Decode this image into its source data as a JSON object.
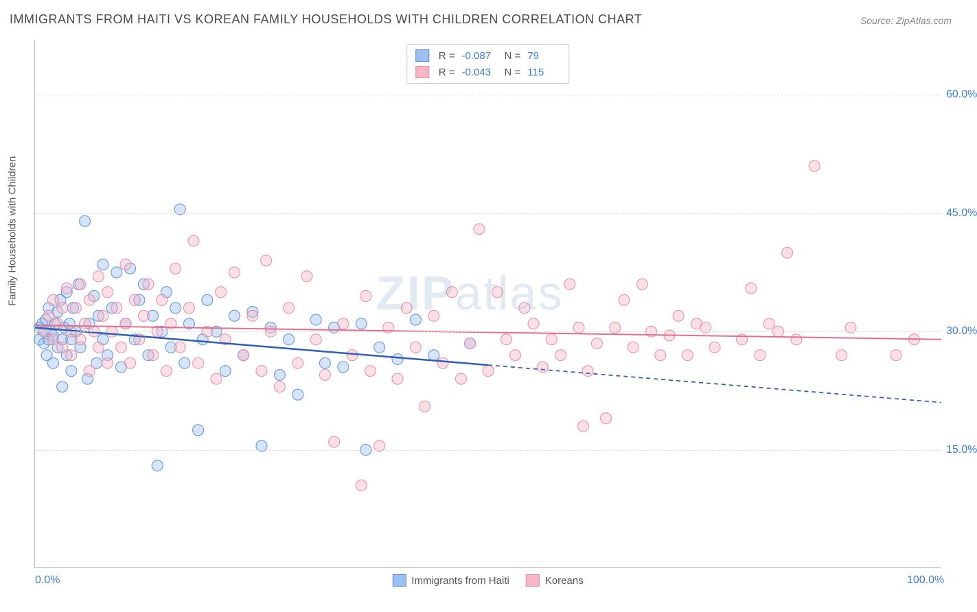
{
  "title": "IMMIGRANTS FROM HAITI VS KOREAN FAMILY HOUSEHOLDS WITH CHILDREN CORRELATION CHART",
  "source": "Source: ZipAtlas.com",
  "y_axis_title": "Family Households with Children",
  "watermark": "ZIPatlas",
  "chart": {
    "type": "scatter",
    "xlim": [
      0,
      100
    ],
    "ylim": [
      0,
      67
    ],
    "x_ticks": [
      {
        "v": 0,
        "label": "0.0%"
      },
      {
        "v": 100,
        "label": "100.0%"
      }
    ],
    "y_ticks": [
      {
        "v": 15,
        "label": "15.0%"
      },
      {
        "v": 30,
        "label": "30.0%"
      },
      {
        "v": 45,
        "label": "45.0%"
      },
      {
        "v": 60,
        "label": "60.0%"
      }
    ],
    "grid_color": "#dddddd",
    "background_color": "#ffffff",
    "axis_color": "#bbbbbb",
    "tick_label_color": "#3b7dd8",
    "marker_radius": 8,
    "marker_opacity": 0.42,
    "marker_stroke_opacity": 0.85,
    "series": [
      {
        "name": "Immigrants from Haiti",
        "fill": "#9dbff2",
        "stroke": "#5a8fd6",
        "R": "-0.087",
        "N": "79",
        "trend": {
          "y_at_x0": 30.5,
          "y_at_x100": 21.0,
          "solid_until_x": 50,
          "color": "#2e5fb3",
          "width": 2.5
        },
        "points": [
          [
            0.5,
            29
          ],
          [
            0.5,
            30.5
          ],
          [
            0.8,
            31
          ],
          [
            1,
            28.5
          ],
          [
            1,
            30
          ],
          [
            1.2,
            31.5
          ],
          [
            1.3,
            27
          ],
          [
            1.5,
            29
          ],
          [
            1.5,
            33
          ],
          [
            1.8,
            30
          ],
          [
            2,
            26
          ],
          [
            2,
            29.5
          ],
          [
            2.2,
            31
          ],
          [
            2.5,
            28
          ],
          [
            2.5,
            32.5
          ],
          [
            2.8,
            34
          ],
          [
            3,
            23
          ],
          [
            3,
            29
          ],
          [
            3.2,
            30.5
          ],
          [
            3.5,
            27
          ],
          [
            3.5,
            35
          ],
          [
            3.8,
            31
          ],
          [
            4,
            25
          ],
          [
            4,
            29
          ],
          [
            4.2,
            33
          ],
          [
            4.5,
            30
          ],
          [
            4.8,
            36
          ],
          [
            5,
            28
          ],
          [
            5.5,
            44
          ],
          [
            5.8,
            24
          ],
          [
            6,
            31
          ],
          [
            6.5,
            34.5
          ],
          [
            6.8,
            26
          ],
          [
            7,
            32
          ],
          [
            7.5,
            29
          ],
          [
            7.5,
            38.5
          ],
          [
            8,
            27
          ],
          [
            8.5,
            33
          ],
          [
            9,
            37.5
          ],
          [
            9.5,
            25.5
          ],
          [
            10,
            31
          ],
          [
            10.5,
            38
          ],
          [
            11,
            29
          ],
          [
            11.5,
            34
          ],
          [
            12,
            36
          ],
          [
            12.5,
            27
          ],
          [
            13,
            32
          ],
          [
            13.5,
            13
          ],
          [
            14,
            30
          ],
          [
            14.5,
            35
          ],
          [
            15,
            28
          ],
          [
            15.5,
            33
          ],
          [
            16,
            45.5
          ],
          [
            16.5,
            26
          ],
          [
            17,
            31
          ],
          [
            18,
            17.5
          ],
          [
            18.5,
            29
          ],
          [
            19,
            34
          ],
          [
            20,
            30
          ],
          [
            21,
            25
          ],
          [
            22,
            32
          ],
          [
            23,
            27
          ],
          [
            24,
            32.5
          ],
          [
            25,
            15.5
          ],
          [
            26,
            30.5
          ],
          [
            27,
            24.5
          ],
          [
            28,
            29
          ],
          [
            29,
            22
          ],
          [
            31,
            31.5
          ],
          [
            32,
            26
          ],
          [
            33,
            30.5
          ],
          [
            34,
            25.5
          ],
          [
            36,
            31
          ],
          [
            36.5,
            15
          ],
          [
            38,
            28
          ],
          [
            40,
            26.5
          ],
          [
            42,
            31.5
          ],
          [
            44,
            27
          ],
          [
            48,
            28.5
          ]
        ]
      },
      {
        "name": "Koreans",
        "fill": "#f5b7c5",
        "stroke": "#e88aa0",
        "R": "-0.043",
        "N": "115",
        "trend": {
          "y_at_x0": 30.8,
          "y_at_x100": 29.0,
          "solid_until_x": 100,
          "color": "#e36f8c",
          "width": 2
        },
        "points": [
          [
            1,
            30
          ],
          [
            1.5,
            32
          ],
          [
            2,
            29
          ],
          [
            2,
            34
          ],
          [
            2.5,
            31
          ],
          [
            3,
            28
          ],
          [
            3,
            33
          ],
          [
            3.5,
            35.5
          ],
          [
            4,
            30
          ],
          [
            4,
            27
          ],
          [
            4.5,
            33
          ],
          [
            5,
            29
          ],
          [
            5,
            36
          ],
          [
            5.5,
            31
          ],
          [
            6,
            25
          ],
          [
            6,
            34
          ],
          [
            6.5,
            30
          ],
          [
            7,
            28
          ],
          [
            7,
            37
          ],
          [
            7.5,
            32
          ],
          [
            8,
            26
          ],
          [
            8,
            35
          ],
          [
            8.5,
            30
          ],
          [
            9,
            33
          ],
          [
            9.5,
            28
          ],
          [
            10,
            31
          ],
          [
            10,
            38.5
          ],
          [
            10.5,
            26
          ],
          [
            11,
            34
          ],
          [
            11.5,
            29
          ],
          [
            12,
            32
          ],
          [
            12.5,
            36
          ],
          [
            13,
            27
          ],
          [
            13.5,
            30
          ],
          [
            14,
            34
          ],
          [
            14.5,
            25
          ],
          [
            15,
            31
          ],
          [
            15.5,
            38
          ],
          [
            16,
            28
          ],
          [
            17,
            33
          ],
          [
            17.5,
            41.5
          ],
          [
            18,
            26
          ],
          [
            19,
            30
          ],
          [
            20,
            24
          ],
          [
            20.5,
            35
          ],
          [
            21,
            29
          ],
          [
            22,
            37.5
          ],
          [
            23,
            27
          ],
          [
            24,
            32
          ],
          [
            25,
            25
          ],
          [
            25.5,
            39
          ],
          [
            26,
            30
          ],
          [
            27,
            23
          ],
          [
            28,
            33
          ],
          [
            29,
            26
          ],
          [
            30,
            37
          ],
          [
            31,
            29
          ],
          [
            32,
            24.5
          ],
          [
            33,
            16
          ],
          [
            34,
            31
          ],
          [
            35,
            27
          ],
          [
            36,
            10.5
          ],
          [
            36.5,
            34.5
          ],
          [
            37,
            25
          ],
          [
            38,
            15.5
          ],
          [
            39,
            30.5
          ],
          [
            40,
            24
          ],
          [
            41,
            33
          ],
          [
            42,
            28
          ],
          [
            43,
            20.5
          ],
          [
            44,
            32
          ],
          [
            45,
            26
          ],
          [
            46,
            35
          ],
          [
            47,
            24
          ],
          [
            48,
            28.5
          ],
          [
            49,
            43
          ],
          [
            50,
            25
          ],
          [
            51,
            35
          ],
          [
            52,
            29
          ],
          [
            53,
            27
          ],
          [
            54,
            33
          ],
          [
            55,
            31
          ],
          [
            56,
            25.5
          ],
          [
            57,
            29
          ],
          [
            58,
            27
          ],
          [
            59,
            36
          ],
          [
            60,
            30.5
          ],
          [
            60.5,
            18
          ],
          [
            61,
            25
          ],
          [
            62,
            28.5
          ],
          [
            63,
            19
          ],
          [
            64,
            30.5
          ],
          [
            65,
            34
          ],
          [
            66,
            28
          ],
          [
            67,
            36
          ],
          [
            68,
            30
          ],
          [
            69,
            27
          ],
          [
            70,
            29.5
          ],
          [
            71,
            32
          ],
          [
            72,
            27
          ],
          [
            73,
            31
          ],
          [
            74,
            30.5
          ],
          [
            75,
            28
          ],
          [
            78,
            29
          ],
          [
            79,
            35.5
          ],
          [
            80,
            27
          ],
          [
            81,
            31
          ],
          [
            82,
            30
          ],
          [
            83,
            40
          ],
          [
            84,
            29
          ],
          [
            86,
            51
          ],
          [
            89,
            27
          ],
          [
            90,
            30.5
          ],
          [
            95,
            27
          ],
          [
            97,
            29
          ]
        ]
      }
    ]
  }
}
